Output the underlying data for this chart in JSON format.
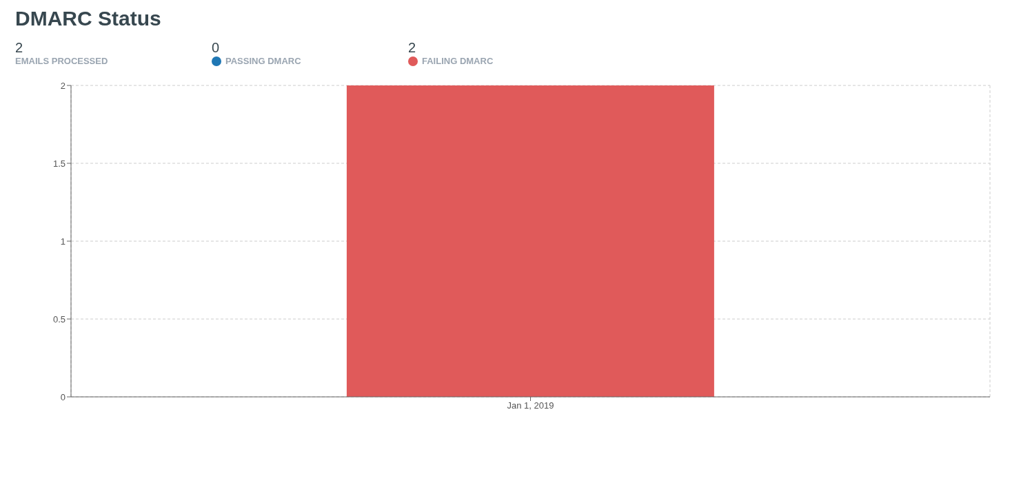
{
  "chart_data": {
    "type": "bar",
    "title": "DMARC Status",
    "annotations": [
      "2",
      "EMAILS PROCESSED",
      "0",
      "2"
    ],
    "categories": [
      "Jan 1, 2019"
    ],
    "series": [
      {
        "name": "PASSING DMARC",
        "color": "#1f77b4",
        "values": [
          0
        ]
      },
      {
        "name": "FAILING DMARC",
        "color": "#e05a5a",
        "values": [
          2
        ]
      }
    ],
    "stacked": true,
    "ylim": [
      0,
      2
    ],
    "yticks": [
      0,
      0.5,
      1,
      1.5,
      2
    ],
    "grid": true,
    "legend": "top left"
  }
}
